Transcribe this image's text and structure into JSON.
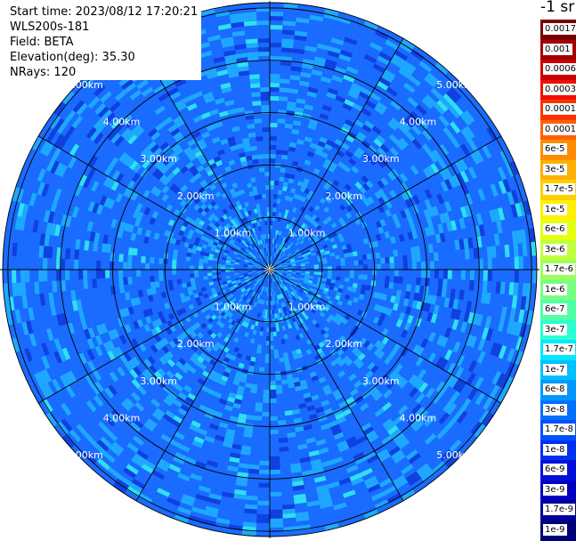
{
  "header": {
    "start_time": "Start time: 2023/08/12 17:20:21",
    "instrument": "WLS200s-181",
    "field": "Field: BETA",
    "elevation": "Elevation(deg): 35.30",
    "nrays": "NRays: 120"
  },
  "colorbar": {
    "unit_title": "-1 sr",
    "labels": [
      "0.0017",
      "0.001",
      "0.0006",
      "0.0003",
      "0.00017",
      "0.0001",
      "6e-5",
      "3e-5",
      "1.7e-5",
      "1e-5",
      "6e-6",
      "3e-6",
      "1.7e-6",
      "1e-6",
      "6e-7",
      "3e-7",
      "1.7e-7",
      "1e-7",
      "6e-8",
      "3e-8",
      "1.7e-8",
      "1e-8",
      "6e-9",
      "3e-9",
      "1.7e-9",
      "1e-9"
    ],
    "colors": [
      "#7a0000",
      "#a50000",
      "#cc0000",
      "#ee1000",
      "#ff3000",
      "#ff6000",
      "#ff8c00",
      "#ffb000",
      "#ffd000",
      "#fff000",
      "#e6ff10",
      "#c0ff3a",
      "#9cff5e",
      "#78ff82",
      "#52ffa6",
      "#2cffd0",
      "#00e8ff",
      "#00c0ff",
      "#0098ff",
      "#0070ff",
      "#0050ff",
      "#0030f0",
      "#0010d8",
      "#0000c0",
      "#00009c",
      "#000078"
    ]
  },
  "chart_data": {
    "type": "heatmap",
    "subtype": "polar PPI",
    "field": "BETA",
    "elevation_deg": 35.3,
    "nrays": 120,
    "range_ring_labels": [
      "1.00km",
      "2.00km",
      "3.00km",
      "4.00km",
      "5.00km"
    ],
    "range_rings_km": [
      1,
      2,
      3,
      4,
      5
    ],
    "spokes_every_deg": 30,
    "dominant_value_range": [
      "6e-9",
      "1.7e-7"
    ],
    "colors": {
      "dominant": "#1a6bff",
      "light": "#1ea8ff",
      "cyan": "#2ee0f0",
      "dark": "#1040e0"
    }
  }
}
